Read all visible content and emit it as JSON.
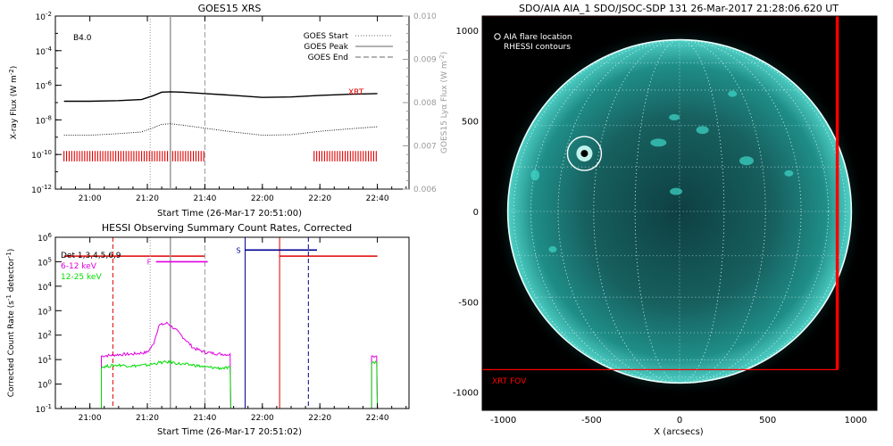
{
  "chart_data": [
    {
      "type": "line",
      "title": "GOES15 XRS",
      "xlabel": "Start Time (26-Mar-17 20:51:00)",
      "ylabel": "X-ray Flux (W m^-2)",
      "ylabel_parts": [
        "X-ray Flux (W m",
        "-2",
        ")"
      ],
      "y2label_parts": [
        "GOES15 Lyα Flux (W m",
        "-2",
        ")"
      ],
      "class_label": "B4.0",
      "instrument_label": "XRT",
      "y_scale": "log",
      "xlim_minutes": [
        -12,
        111
      ],
      "ylim": [
        1e-12,
        0.01
      ],
      "x_ticks": [
        "21:00",
        "21:20",
        "21:40",
        "22:00",
        "22:20",
        "22:40"
      ],
      "y_ticks": [
        {
          "v": 1e-12,
          "base": "10",
          "exp": "-12"
        },
        {
          "v": 1e-10,
          "base": "10",
          "exp": "-10"
        },
        {
          "v": 1e-08,
          "base": "10",
          "exp": "-8"
        },
        {
          "v": 1e-06,
          "base": "10",
          "exp": "-6"
        },
        {
          "v": 0.0001,
          "base": "10",
          "exp": "-4"
        },
        {
          "v": 0.01,
          "base": "10",
          "exp": "-2"
        }
      ],
      "y2_ticks": [
        "0.006",
        "0.007",
        "0.008",
        "0.009",
        "0.010"
      ],
      "legend": [
        {
          "label": "GOES Start",
          "style": "dotted"
        },
        {
          "label": "GOES Peak",
          "style": "solid"
        },
        {
          "label": "GOES End",
          "style": "dashed"
        }
      ],
      "markers": {
        "start": "21:21",
        "peak": "21:28",
        "end": "21:40"
      },
      "series": [
        {
          "name": "GOES long channel",
          "x": [
            "20:51",
            "21:00",
            "21:10",
            "21:18",
            "21:22",
            "21:25",
            "21:28",
            "21:32",
            "21:40",
            "21:50",
            "22:00",
            "22:10",
            "22:20",
            "22:30",
            "22:40"
          ],
          "values": [
            1.2e-07,
            1.2e-07,
            1.3e-07,
            1.5e-07,
            2.5e-07,
            4e-07,
            4.2e-07,
            4e-07,
            3.3e-07,
            2.6e-07,
            2e-07,
            2.1e-07,
            2.6e-07,
            3e-07,
            3.3e-07
          ]
        },
        {
          "name": "GOES short channel",
          "x": [
            "20:51",
            "21:00",
            "21:10",
            "21:18",
            "21:22",
            "21:25",
            "21:28",
            "21:32",
            "21:40",
            "21:50",
            "22:00",
            "22:10",
            "22:20",
            "22:30",
            "22:40"
          ],
          "values": [
            1.3e-09,
            1.3e-09,
            1.6e-09,
            2e-09,
            3.5e-09,
            5.5e-09,
            6e-09,
            5e-09,
            3.3e-09,
            2e-09,
            1.3e-09,
            1.4e-09,
            2.2e-09,
            3e-09,
            4e-09
          ]
        }
      ],
      "xrt_coverage": [
        [
          "20:51",
          "21:40"
        ],
        [
          "22:18",
          "22:40"
        ]
      ]
    },
    {
      "type": "line",
      "title": "HESSI Observing Summary Count Rates, Corrected",
      "xlabel": "Start Time (26-Mar-17 20:51:02)",
      "ylabel_parts": [
        "Corrected Count Rate (s",
        "-1",
        " detector",
        "-1",
        ")"
      ],
      "y_scale": "log",
      "xlim_minutes": [
        -12,
        111
      ],
      "ylim": [
        0.1,
        1000000
      ],
      "x_ticks": [
        "21:00",
        "21:20",
        "21:40",
        "22:00",
        "22:20",
        "22:40"
      ],
      "y_ticks": [
        {
          "v": 0.1,
          "base": "10",
          "exp": "-1"
        },
        {
          "v": 1,
          "base": "10",
          "exp": "0"
        },
        {
          "v": 10,
          "base": "10",
          "exp": "1"
        },
        {
          "v": 100,
          "base": "10",
          "exp": "2"
        },
        {
          "v": 1000,
          "base": "10",
          "exp": "3"
        },
        {
          "v": 10000,
          "base": "10",
          "exp": "4"
        },
        {
          "v": 100000,
          "base": "10",
          "exp": "5"
        },
        {
          "v": 1000000,
          "base": "10",
          "exp": "6"
        }
      ],
      "legend": [
        {
          "label": "Det 1,3,4,5,6,9",
          "color": "#000000"
        },
        {
          "label": "6-12 keV",
          "color": "#e000e0"
        },
        {
          "label": "12-25 keV",
          "color": "#00dd00"
        }
      ],
      "flag_labels": [
        {
          "text": "F",
          "color": "#e000e0",
          "range": [
            "21:23",
            "21:41"
          ],
          "level": 100000
        },
        {
          "text": "S",
          "color": "#000090",
          "range": [
            "21:54",
            "22:19"
          ],
          "level": 300000
        }
      ],
      "xrt_coverage": [
        [
          "20:51",
          "21:40"
        ],
        [
          "22:06",
          "22:40"
        ]
      ],
      "red_dashed_at": "21:08",
      "red_solid_at": "22:06",
      "blue_solid_at": "21:54",
      "blue_dashed_at": "22:16",
      "series": [
        {
          "name": "6-12 keV",
          "segments": [
            {
              "x": [
                "21:04",
                "21:10",
                "21:15",
                "21:20",
                "21:22",
                "21:24",
                "21:27",
                "21:30",
                "21:33",
                "21:36",
                "21:40",
                "21:45",
                "21:49"
              ],
              "values": [
                14,
                16,
                17,
                20,
                40,
                250,
                310,
                160,
                70,
                30,
                20,
                17,
                16
              ]
            },
            {
              "x": [
                "22:38",
                "22:40"
              ],
              "values": [
                14,
                14
              ]
            }
          ]
        },
        {
          "name": "12-25 keV",
          "segments": [
            {
              "x": [
                "21:04",
                "21:10",
                "21:15",
                "21:20",
                "21:24",
                "21:28",
                "21:32",
                "21:36",
                "21:40",
                "21:45",
                "21:49"
              ],
              "values": [
                5,
                6,
                5.5,
                6,
                7.5,
                8,
                6.5,
                6,
                5,
                4.5,
                4.5
              ]
            },
            {
              "x": [
                "22:38",
                "22:40"
              ],
              "values": [
                8,
                8
              ]
            }
          ]
        }
      ]
    },
    {
      "type": "heatmap",
      "title": "SDO/AIA AIA_1 SDO/JSOC-SDP 131 26-Mar-2017 21:28:06.620 UT",
      "xlabel": "X (arcsecs)",
      "ylabel": "",
      "xlim": [
        -1120,
        1120
      ],
      "ylim": [
        -1100,
        1080
      ],
      "x_ticks": [
        "-1000",
        "-500",
        "0",
        "500",
        "1000"
      ],
      "y_ticks": [
        "1000",
        "500",
        "0",
        "-500",
        "-1000"
      ],
      "solar_radius_arcsec": 975,
      "legend": [
        {
          "label": "AIA flare location",
          "symbol": "circle"
        },
        {
          "label": "RHESSI contours"
        }
      ],
      "flare_location": [
        -540,
        320
      ],
      "xrt_fov_label": "XRT FOV",
      "xrt_fov": {
        "x": [
          -1120,
          895
        ],
        "y": [
          -875,
          1080
        ]
      },
      "colors": {
        "disk": "#1fa89e",
        "limb": "#e8fffc",
        "fov": "#ff0000"
      }
    }
  ]
}
